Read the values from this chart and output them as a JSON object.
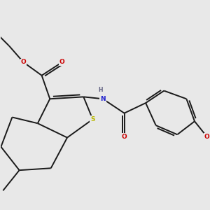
{
  "background_color": "#e8e8e8",
  "bond_color": "#1a1a1a",
  "sulfur_color": "#b8b800",
  "nitrogen_color": "#2020cc",
  "oxygen_color": "#cc0000",
  "hydrogen_color": "#606080",
  "line_width": 1.4,
  "figsize": [
    3.0,
    3.0
  ],
  "dpi": 100,
  "xlim": [
    0,
    10
  ],
  "ylim": [
    0,
    10
  ]
}
